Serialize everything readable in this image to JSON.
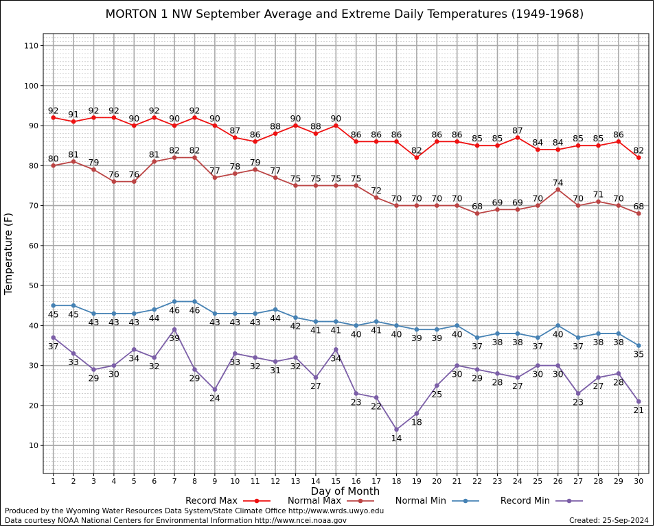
{
  "title": "MORTON 1 NW September Average and Extreme Daily Temperatures (1949-1968)",
  "footer": {
    "credit1": "Produced by the Wyoming Water Resources Data System/State Climate Office http://www.wrds.uwyo.edu",
    "credit2": "Data courtesy NOAA National Centers for Environmental Information http://www.ncei.noaa.gov",
    "created": "Created:  25-Sep-2024"
  },
  "chart_data": {
    "type": "line",
    "title": "MORTON 1 NW September Average and Extreme Daily Temperatures (1949-1968)",
    "xlabel": "Day of Month",
    "ylabel": "Temperature (F)",
    "x": [
      1,
      2,
      3,
      4,
      5,
      6,
      7,
      8,
      9,
      10,
      11,
      12,
      13,
      14,
      15,
      16,
      17,
      18,
      19,
      20,
      21,
      22,
      23,
      24,
      25,
      26,
      27,
      28,
      29,
      30
    ],
    "xlim": [
      0.5,
      30.5
    ],
    "ylim": [
      3,
      113
    ],
    "yticks": [
      10,
      20,
      30,
      40,
      50,
      60,
      70,
      80,
      90,
      100,
      110
    ],
    "grid": true,
    "legend_position": "bottom",
    "series": [
      {
        "name": "Record Max",
        "color": "#ee1111",
        "values": [
          92,
          91,
          92,
          92,
          90,
          92,
          90,
          92,
          90,
          87,
          86,
          88,
          90,
          88,
          90,
          86,
          86,
          86,
          82,
          86,
          86,
          85,
          85,
          87,
          84,
          84,
          85,
          85,
          86,
          82
        ]
      },
      {
        "name": "Normal Max",
        "color": "#bb4444",
        "values": [
          80,
          81,
          79,
          76,
          76,
          81,
          82,
          82,
          77,
          78,
          79,
          77,
          75,
          75,
          75,
          75,
          72,
          70,
          70,
          70,
          70,
          68,
          69,
          69,
          70,
          74,
          70,
          71,
          70,
          68
        ]
      },
      {
        "name": "Normal Min",
        "color": "#4682b4",
        "values": [
          45,
          45,
          43,
          43,
          43,
          44,
          46,
          46,
          43,
          43,
          43,
          44,
          42,
          41,
          41,
          40,
          41,
          40,
          39,
          39,
          40,
          37,
          38,
          38,
          37,
          40,
          37,
          38,
          38,
          35
        ]
      },
      {
        "name": "Record Min",
        "color": "#7b5ea7",
        "values": [
          37,
          33,
          29,
          30,
          34,
          32,
          39,
          29,
          24,
          33,
          32,
          31,
          32,
          27,
          34,
          23,
          22,
          14,
          18,
          25,
          30,
          29,
          28,
          27,
          30,
          30,
          23,
          27,
          28,
          21
        ]
      }
    ]
  }
}
